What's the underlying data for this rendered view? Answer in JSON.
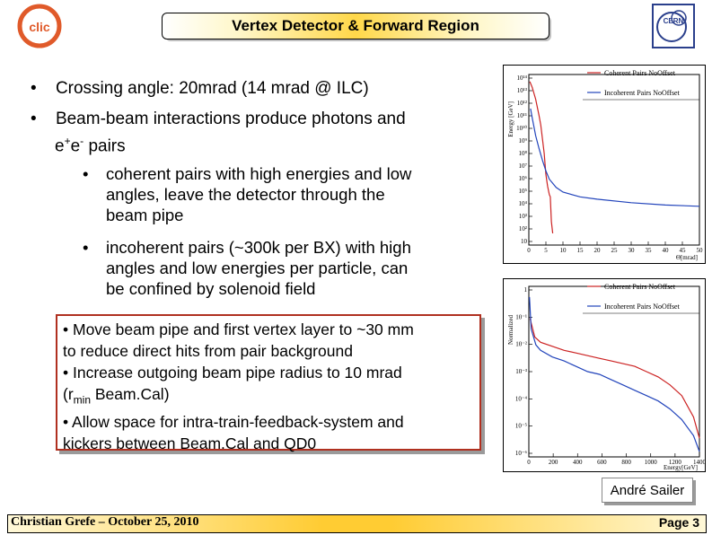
{
  "slide": {
    "title": "Vertex Detector & Forward Region",
    "logo_left_text": "CLIC",
    "logo_right_text": "CERN",
    "bullets": [
      {
        "text": "Crossing angle: 20mrad (14 mrad @ ILC)"
      },
      {
        "text_main": "Beam-beam interactions produce photons and",
        "text_cont_pre": "e",
        "sup1": "+",
        "text_mid": "e",
        "sup2": "-",
        "text_post": " pairs"
      }
    ],
    "sub_bullets": [
      {
        "lines": [
          "coherent pairs with high energies and low",
          "angles, leave the detector through the",
          "beam pipe"
        ]
      },
      {
        "lines": [
          "incoherent pairs (~300k per BX) with high",
          "angles and low energies per particle, can",
          "be confined by solenoid field"
        ]
      }
    ],
    "note_box": {
      "line1": "• Move beam pipe and first vertex layer to ~30 mm",
      "line2": "to reduce direct hits from pair background",
      "line3": "• Increase outgoing beam pipe radius to 10 mrad",
      "line4_pre": "(r",
      "line4_sub": "min",
      "line4_post": " Beam.Cal)",
      "line5": "• Allow space for intra-train-feedback-system and",
      "line6": "kickers between Beam.Cal and QD0"
    },
    "author": "André Sailer",
    "footer_left": "Christian Grefe –  October 25, 2010",
    "footer_right_label": "Page",
    "footer_right_num": "3"
  },
  "chart_data": [
    {
      "type": "line",
      "xlabel": "Θ[mrad]",
      "ylabel": "Energy [GeV]",
      "x_ticks": [
        "0",
        "5",
        "10",
        "15",
        "20",
        "25",
        "30",
        "35",
        "40",
        "45",
        "50"
      ],
      "y_ticks": [
        "10¹⁴",
        "10¹³",
        "10¹²",
        "10¹¹",
        "10¹⁰",
        "10⁹",
        "10⁸",
        "10⁷",
        "10⁶",
        "10⁵",
        "10⁴",
        "10³",
        "10²",
        "10"
      ],
      "series": [
        {
          "name": "Coherent Pairs NoOffset",
          "color": "#cc2222",
          "x": [
            0.3,
            1,
            2,
            3,
            3.5,
            4,
            4.5,
            5,
            5.5,
            6,
            6.3,
            6.6,
            7
          ],
          "y_log10": [
            13.9,
            13.4,
            12.4,
            11.0,
            10.2,
            9.0,
            7.8,
            6.0,
            5.0,
            4.3,
            4.1,
            2.0,
            1.0
          ]
        },
        {
          "name": "Incoherent Pairs NoOffset",
          "color": "#2244bb",
          "x": [
            0.5,
            1,
            2,
            3,
            4,
            5,
            6,
            8,
            10,
            15,
            20,
            30,
            40,
            50
          ],
          "y_log10": [
            11.6,
            10.8,
            9.3,
            8.2,
            7.2,
            6.3,
            5.6,
            4.9,
            4.5,
            4.1,
            3.9,
            3.6,
            3.4,
            3.3
          ]
        }
      ]
    },
    {
      "type": "line",
      "xlabel": "Energy[GeV]",
      "ylabel": "Normalized",
      "x_ticks": [
        "0",
        "200",
        "400",
        "600",
        "800",
        "1000",
        "1200",
        "1400"
      ],
      "y_ticks": [
        "1",
        "10⁻¹",
        "10⁻²",
        "10⁻³",
        "10⁻⁴",
        "10⁻⁵",
        "10⁻⁶"
      ],
      "series": [
        {
          "name": "Coherent Pairs NoOffset",
          "color": "#cc2222",
          "x": [
            10,
            50,
            100,
            200,
            300,
            400,
            500,
            600,
            700,
            800,
            900,
            1000,
            1100,
            1200,
            1300,
            1400,
            1450
          ],
          "y_log10": [
            -1.0,
            -1.7,
            -1.9,
            -2.05,
            -2.2,
            -2.3,
            -2.4,
            -2.5,
            -2.6,
            -2.7,
            -2.8,
            -3.0,
            -3.2,
            -3.5,
            -3.9,
            -4.7,
            -5.5
          ]
        },
        {
          "name": "Incoherent Pairs NoOffset",
          "color": "#2244bb",
          "x": [
            5,
            20,
            60,
            100,
            200,
            300,
            400,
            500,
            600,
            700,
            800,
            900,
            1000,
            1100,
            1200,
            1300,
            1400,
            1450
          ],
          "y_log10": [
            -0.2,
            -1.4,
            -2.0,
            -2.2,
            -2.45,
            -2.6,
            -2.8,
            -3.0,
            -3.1,
            -3.3,
            -3.5,
            -3.7,
            -3.9,
            -4.1,
            -4.4,
            -4.8,
            -5.4,
            -6.0
          ]
        }
      ]
    }
  ]
}
